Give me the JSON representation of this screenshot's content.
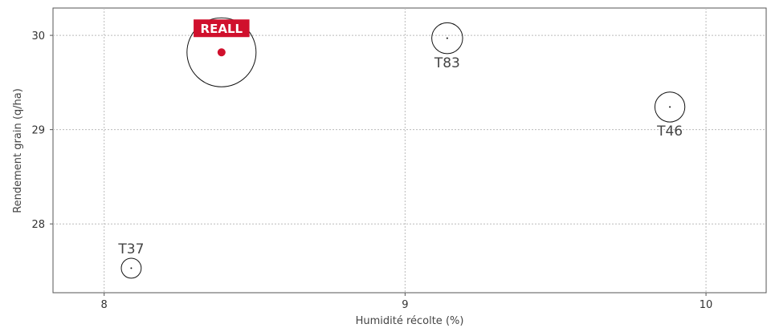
{
  "chart_data": {
    "type": "scatter",
    "xlabel": "Humidité récolte (%)",
    "ylabel": "Rendement grain (q/ha)",
    "xlim": [
      7.83,
      10.2
    ],
    "ylim": [
      27.27,
      30.29
    ],
    "xticks": [
      8,
      9,
      10
    ],
    "yticks": [
      28,
      29,
      30
    ],
    "xtick_labels": [
      "8",
      "9",
      "10"
    ],
    "ytick_labels": [
      "28",
      "29",
      "30"
    ],
    "grid": true,
    "grid_style": "dotted",
    "points": [
      {
        "label": "REALL",
        "x": 8.39,
        "y": 29.82,
        "size": 6.0,
        "highlight": true,
        "label_position": "above"
      },
      {
        "label": "T83",
        "x": 9.14,
        "y": 29.97,
        "size": 1.2,
        "highlight": false,
        "label_position": "below"
      },
      {
        "label": "T46",
        "x": 9.88,
        "y": 29.24,
        "size": 1.13,
        "highlight": false,
        "label_position": "below"
      },
      {
        "label": "T37",
        "x": 8.09,
        "y": 27.53,
        "size": 0.5,
        "highlight": false,
        "label_position": "above"
      }
    ],
    "colors": {
      "highlight": "#d0102d",
      "marker": "#111111",
      "grid": "#bbbbbb",
      "frame": "#555555"
    }
  }
}
